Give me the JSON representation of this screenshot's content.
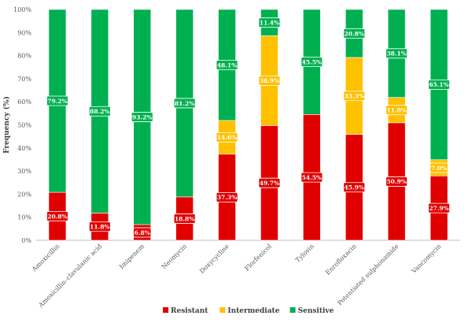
{
  "chart_data": {
    "type": "bar",
    "stacked": true,
    "percent": true,
    "ylabel": "Frequency (%)",
    "ylim": [
      0,
      100
    ],
    "yticks": [
      "0%",
      "10%",
      "20%",
      "30%",
      "40%",
      "50%",
      "60%",
      "70%",
      "80%",
      "90%",
      "100%"
    ],
    "categories": [
      "Amoxicillin",
      "Amoxicillin–clavulanic acid",
      "Imipenem",
      "Neomycin",
      "Doxycycline",
      "Florfenicol",
      "Tylosin",
      "Enrofloxacin",
      "Potentiated sulphonamide",
      "Vancomycin"
    ],
    "series": [
      {
        "name": "Resistant",
        "color": "#e00000",
        "values": [
          20.8,
          11.8,
          6.8,
          18.8,
          37.3,
          49.7,
          54.5,
          45.9,
          50.9,
          27.9
        ],
        "labels": [
          "20.8%",
          "11.8%",
          "6.8%",
          "18.8%",
          "37.3%",
          "49.7%",
          "54.5%",
          "45.9%",
          "50.9%",
          "27.9%"
        ]
      },
      {
        "name": "Intermediate",
        "color": "#ffc000",
        "values": [
          0,
          0,
          0,
          0,
          14.6,
          38.9,
          0,
          33.3,
          11.0,
          7.0
        ],
        "labels": [
          "",
          "",
          "",
          "",
          "14.6%",
          "38.9%",
          "",
          "33.3%",
          "11.0%",
          "7.0%"
        ]
      },
      {
        "name": "Sensitive",
        "color": "#00b050",
        "values": [
          79.2,
          88.2,
          93.2,
          81.2,
          48.1,
          11.4,
          45.5,
          20.8,
          38.1,
          65.1
        ],
        "labels": [
          "79.2%",
          "88.2%",
          "93.2%",
          "81.2%",
          "48.1%",
          "11.4%",
          "45.5%",
          "20.8%",
          "38.1%",
          "65.1%"
        ]
      }
    ],
    "grid": false,
    "legend": "bottom"
  }
}
